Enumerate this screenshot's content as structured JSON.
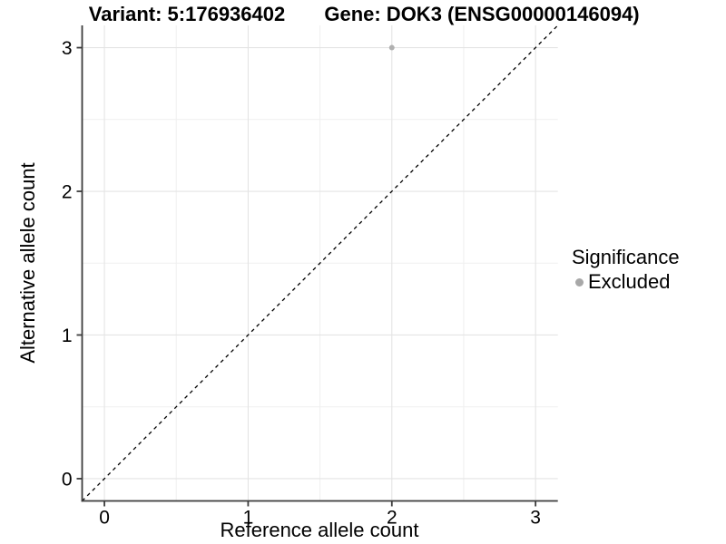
{
  "chart_data": {
    "type": "scatter",
    "title_left": "Variant: 5:176936402",
    "title_right": "Gene: DOK3 (ENSG00000146094)",
    "xlabel": "Reference allele count",
    "ylabel": "Alternative allele count",
    "xlim": [
      -0.155,
      3.155
    ],
    "ylim": [
      -0.155,
      3.155
    ],
    "x_ticks": [
      0,
      1,
      2,
      3
    ],
    "y_ticks": [
      0,
      1,
      2,
      3
    ],
    "x_minor": [
      0.5,
      1.5,
      2.5
    ],
    "y_minor": [
      0.5,
      1.5,
      2.5
    ],
    "grid": true,
    "identity_line": {
      "style": "dashed",
      "color": "#000000"
    },
    "series": [
      {
        "name": "Excluded",
        "color": "#b0b0b0",
        "points": [
          {
            "x": 2,
            "y": 3
          }
        ]
      }
    ],
    "legend": {
      "title": "Significance",
      "position": "right",
      "items": [
        {
          "label": "Excluded",
          "color": "#a8a8a8"
        }
      ]
    },
    "colors": {
      "background": "#ffffff",
      "grid_major": "#e4e4e4",
      "grid_minor": "#efefef",
      "axis": "#3c3c3c",
      "text": "#000000"
    }
  }
}
